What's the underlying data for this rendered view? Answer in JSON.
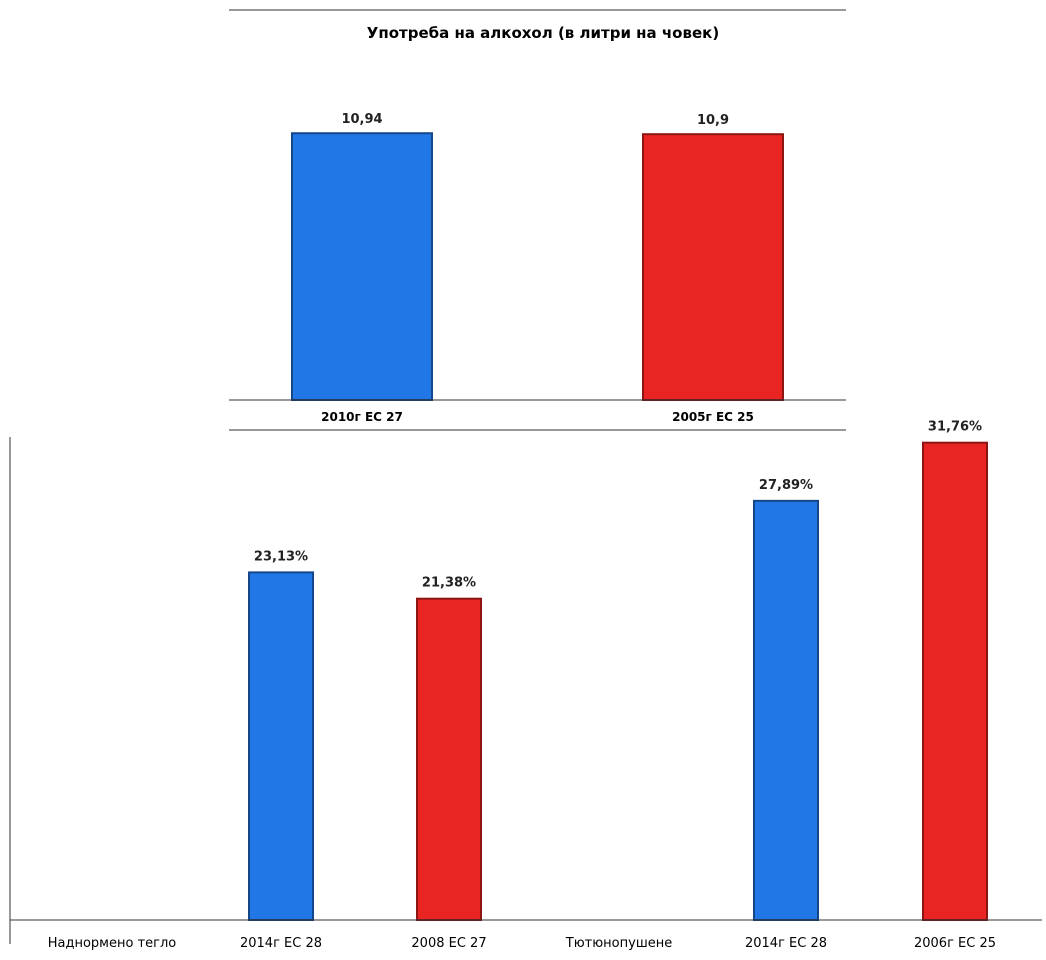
{
  "chart_data": [
    {
      "type": "bar",
      "title": "Употреба на алкохол (в литри на човек)",
      "xlabel": "",
      "ylabel": "",
      "categories": [
        "2010г ЕС 27",
        "2005г ЕС 25"
      ],
      "values": [
        10.94,
        10.9
      ],
      "value_labels": [
        "10,94",
        "10,9"
      ],
      "bar_colors": [
        "#2277e6",
        "#e82522"
      ],
      "ylim": [
        0,
        13
      ],
      "grid": false,
      "legend": "none"
    },
    {
      "type": "bar",
      "title": "",
      "xlabel": "",
      "ylabel": "",
      "categories": [
        "Наднормено тегло",
        "2014г ЕС 28",
        "2008 ЕС 27",
        "Тютюнопушене",
        "2014г ЕС 28",
        "2006г ЕС 25"
      ],
      "values": [
        null,
        23.13,
        21.38,
        null,
        27.89,
        31.76
      ],
      "value_labels": [
        "",
        "23,13%",
        "21,38%",
        "",
        "27,89%",
        "31,76%"
      ],
      "bar_colors": [
        "",
        "#2277e6",
        "#e82522",
        "",
        "#2277e6",
        "#e82522"
      ],
      "ylim": [
        0,
        35
      ],
      "grid": false,
      "legend": "none"
    }
  ]
}
